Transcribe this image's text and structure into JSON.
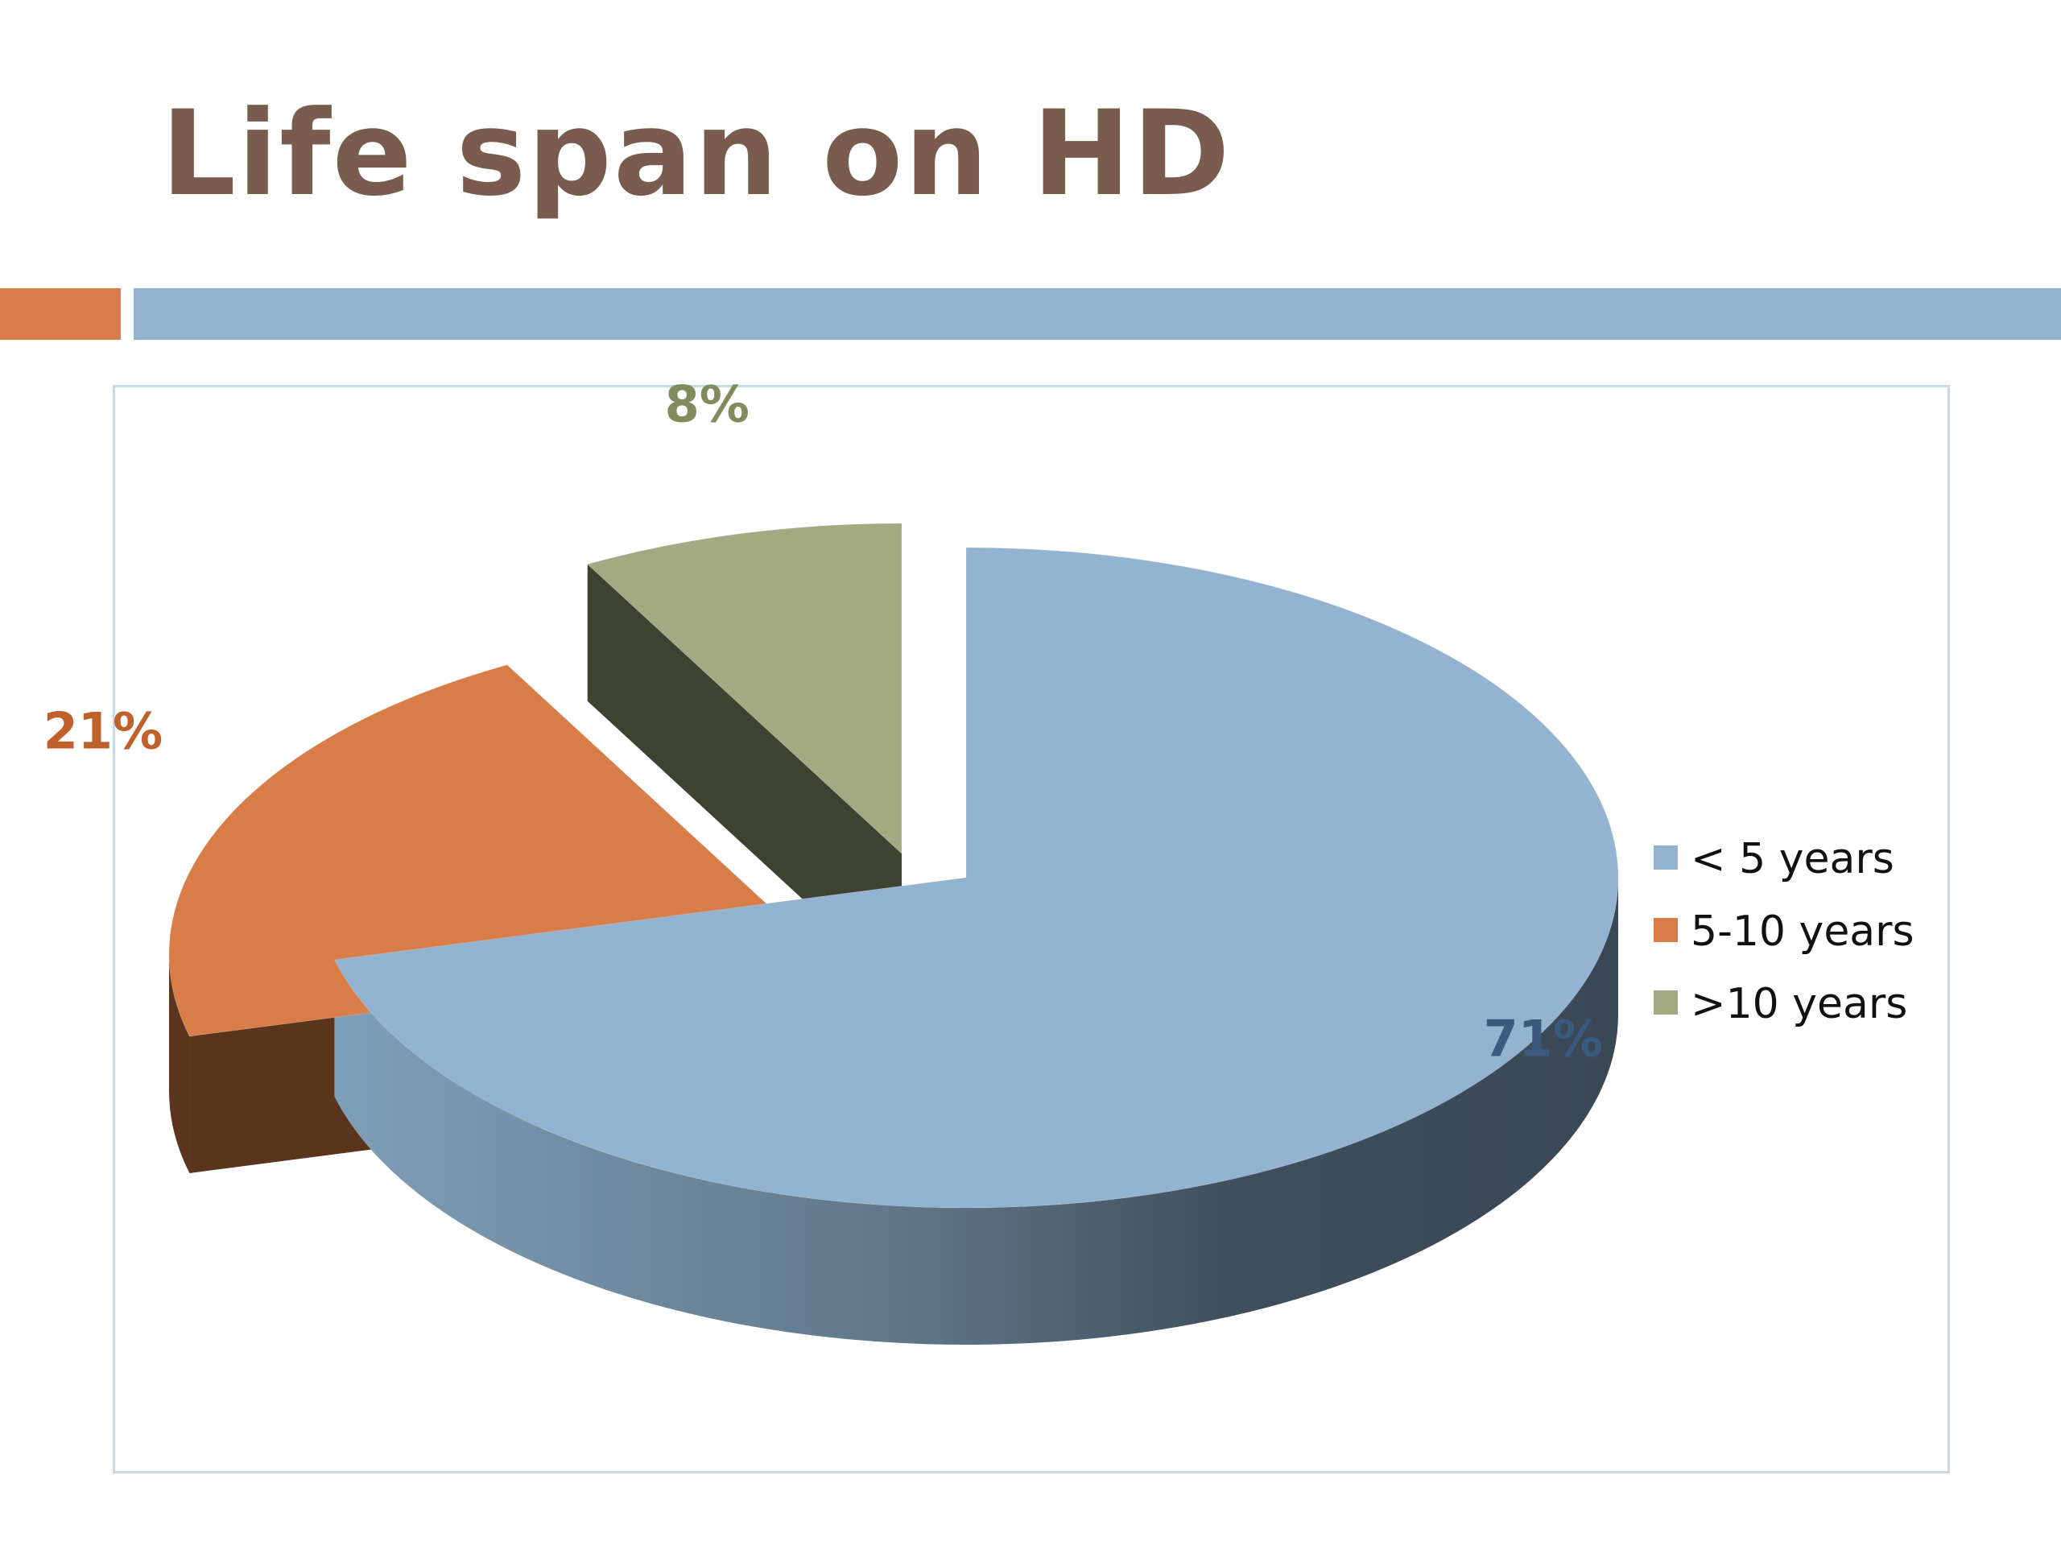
{
  "slide": {
    "title": "Life span on HD",
    "accent_orange": "#d87d47",
    "accent_blue": "#93b3d1",
    "title_color": "#7a5c4f"
  },
  "chart_data": {
    "type": "pie",
    "title": "",
    "style": "3d-exploded",
    "legend_position": "right",
    "categories": [
      "< 5 years",
      "5-10 years",
      ">10 years"
    ],
    "values": [
      71,
      21,
      8
    ],
    "data_labels": [
      "71%",
      "21%",
      "8%"
    ],
    "colors": [
      "#93b3d1",
      "#d87d47",
      "#a3a982"
    ],
    "label_colors": [
      "#3b5b7e",
      "#c0602a",
      "#828b5e"
    ]
  }
}
